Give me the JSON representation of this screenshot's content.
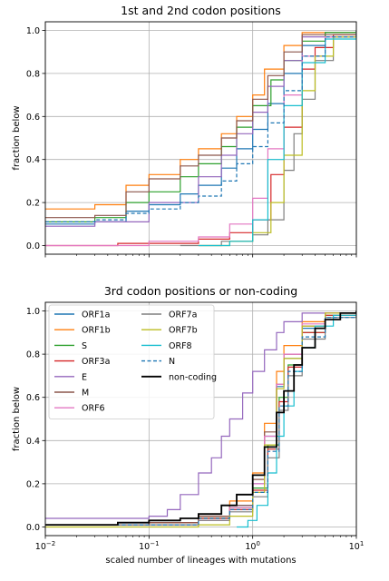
{
  "chart_data": [
    {
      "type": "line",
      "title": "1st and 2nd codon positions",
      "ylabel": "fraction below",
      "xlabel": "",
      "xscale": "log",
      "xlim": [
        0.01,
        10
      ],
      "ylim": [
        -0.04,
        1.04
      ],
      "grid": true,
      "y_ticks": [
        "0.0",
        "0.2",
        "0.4",
        "0.6",
        "0.8",
        "1.0"
      ],
      "series": [
        {
          "name": "ORF1a",
          "color": "#1f77b4",
          "style": "solid",
          "x": [
            0.01,
            0.03,
            0.06,
            0.1,
            0.2,
            0.3,
            0.5,
            0.7,
            1,
            1.4,
            2,
            3,
            5,
            10
          ],
          "y": [
            0.1,
            0.11,
            0.16,
            0.19,
            0.24,
            0.28,
            0.36,
            0.45,
            0.54,
            0.66,
            0.8,
            0.93,
            0.99,
            1.0
          ]
        },
        {
          "name": "ORF1b",
          "color": "#ff7f0e",
          "style": "solid",
          "x": [
            0.01,
            0.03,
            0.06,
            0.1,
            0.2,
            0.3,
            0.5,
            0.7,
            1,
            1.3,
            2,
            3,
            10
          ],
          "y": [
            0.17,
            0.19,
            0.28,
            0.33,
            0.4,
            0.45,
            0.52,
            0.6,
            0.7,
            0.82,
            0.93,
            0.99,
            1.0
          ]
        },
        {
          "name": "S",
          "color": "#2ca02c",
          "style": "solid",
          "x": [
            0.01,
            0.03,
            0.06,
            0.1,
            0.2,
            0.3,
            0.5,
            0.7,
            1,
            1.5,
            2,
            3,
            5,
            10
          ],
          "y": [
            0.11,
            0.13,
            0.2,
            0.25,
            0.32,
            0.38,
            0.46,
            0.55,
            0.65,
            0.77,
            0.86,
            0.95,
            0.99,
            1.0
          ]
        },
        {
          "name": "ORF3a",
          "color": "#d62728",
          "style": "solid",
          "x": [
            0.01,
            0.05,
            0.1,
            0.3,
            0.6,
            1,
            1.5,
            2,
            3,
            4,
            6,
            10
          ],
          "y": [
            0.0,
            0.01,
            0.01,
            0.03,
            0.06,
            0.12,
            0.33,
            0.55,
            0.82,
            0.92,
            0.98,
            1.0
          ]
        },
        {
          "name": "E",
          "color": "#9467bd",
          "style": "solid",
          "x": [
            0.01,
            0.03,
            0.1,
            0.3,
            0.5,
            0.7,
            1,
            1.4,
            2,
            3,
            10
          ],
          "y": [
            0.09,
            0.11,
            0.2,
            0.32,
            0.42,
            0.52,
            0.62,
            0.74,
            0.86,
            0.97,
            1.0
          ]
        },
        {
          "name": "M",
          "color": "#8c564b",
          "style": "solid",
          "x": [
            0.01,
            0.03,
            0.06,
            0.1,
            0.2,
            0.3,
            0.5,
            0.7,
            1,
            1.4,
            2,
            3,
            10
          ],
          "y": [
            0.13,
            0.14,
            0.25,
            0.31,
            0.37,
            0.42,
            0.5,
            0.58,
            0.68,
            0.79,
            0.9,
            0.98,
            1.0
          ]
        },
        {
          "name": "ORF6",
          "color": "#e377c2",
          "style": "solid",
          "x": [
            0.01,
            0.1,
            0.3,
            0.6,
            1,
            1.4,
            2,
            3,
            5,
            10
          ],
          "y": [
            0.0,
            0.02,
            0.04,
            0.1,
            0.22,
            0.45,
            0.7,
            0.88,
            0.97,
            1.0
          ]
        },
        {
          "name": "ORF7a",
          "color": "#7f7f7f",
          "style": "solid",
          "x": [
            0.2,
            0.5,
            1,
            1.4,
            2,
            2.5,
            3,
            4,
            6,
            10
          ],
          "y": [
            0.0,
            0.02,
            0.05,
            0.12,
            0.35,
            0.52,
            0.68,
            0.86,
            0.97,
            1.0
          ]
        },
        {
          "name": "ORF7b",
          "color": "#bcbd22",
          "style": "solid",
          "x": [
            0.3,
            0.6,
            1,
            1.5,
            2,
            3,
            4,
            6,
            10
          ],
          "y": [
            0.0,
            0.02,
            0.06,
            0.2,
            0.42,
            0.72,
            0.88,
            0.97,
            1.0
          ]
        },
        {
          "name": "ORF8",
          "color": "#17becf",
          "style": "solid",
          "x": [
            0.3,
            0.6,
            1,
            1.4,
            2,
            3,
            5,
            10
          ],
          "y": [
            0.0,
            0.02,
            0.12,
            0.4,
            0.65,
            0.85,
            0.96,
            1.0
          ]
        },
        {
          "name": "N",
          "color": "#1f77b4",
          "style": "dashed",
          "x": [
            0.01,
            0.03,
            0.06,
            0.1,
            0.2,
            0.3,
            0.5,
            0.7,
            1,
            1.4,
            2,
            3,
            5,
            10
          ],
          "y": [
            0.11,
            0.12,
            0.15,
            0.17,
            0.2,
            0.23,
            0.3,
            0.38,
            0.46,
            0.57,
            0.72,
            0.88,
            0.97,
            1.0
          ]
        }
      ]
    },
    {
      "type": "line",
      "title": "3rd codon positions or non-coding",
      "ylabel": "fraction below",
      "xlabel": "scaled number of lineages with mutations",
      "xscale": "log",
      "xlim": [
        0.01,
        10
      ],
      "ylim": [
        -0.04,
        1.04
      ],
      "grid": true,
      "legend": "top-left",
      "x_ticks": [
        {
          "base": "10",
          "exp": "−2"
        },
        {
          "base": "10",
          "exp": "−1"
        },
        {
          "base": "10",
          "exp": "0"
        },
        {
          "base": "10",
          "exp": "1"
        }
      ],
      "y_ticks": [
        "0.0",
        "0.2",
        "0.4",
        "0.6",
        "0.8",
        "1.0"
      ],
      "series": [
        {
          "name": "ORF1a",
          "color": "#1f77b4",
          "style": "solid",
          "x": [
            0.01,
            0.1,
            0.3,
            0.6,
            1,
            1.3,
            1.7,
            2,
            3,
            5,
            10
          ],
          "y": [
            0.01,
            0.02,
            0.05,
            0.1,
            0.2,
            0.42,
            0.65,
            0.78,
            0.92,
            0.99,
            1.0
          ]
        },
        {
          "name": "ORF1b",
          "color": "#ff7f0e",
          "style": "solid",
          "x": [
            0.01,
            0.1,
            0.3,
            0.6,
            1,
            1.3,
            1.7,
            2,
            3,
            5,
            10
          ],
          "y": [
            0.01,
            0.02,
            0.05,
            0.12,
            0.25,
            0.48,
            0.72,
            0.84,
            0.95,
            0.99,
            1.0
          ]
        },
        {
          "name": "S",
          "color": "#2ca02c",
          "style": "solid",
          "x": [
            0.01,
            0.1,
            0.3,
            0.6,
            1,
            1.4,
            1.8,
            2.2,
            3,
            5,
            10
          ],
          "y": [
            0.01,
            0.02,
            0.04,
            0.09,
            0.18,
            0.38,
            0.6,
            0.75,
            0.9,
            0.98,
            1.0
          ]
        },
        {
          "name": "ORF3a",
          "color": "#d62728",
          "style": "solid",
          "x": [
            0.01,
            0.1,
            0.3,
            0.6,
            1,
            1.4,
            1.8,
            2.2,
            3,
            5,
            10
          ],
          "y": [
            0.01,
            0.02,
            0.04,
            0.08,
            0.17,
            0.36,
            0.58,
            0.74,
            0.9,
            0.98,
            1.0
          ]
        },
        {
          "name": "E",
          "color": "#9467bd",
          "style": "solid",
          "x": [
            0.01,
            0.1,
            0.15,
            0.2,
            0.3,
            0.4,
            0.5,
            0.6,
            0.8,
            1,
            1.3,
            1.7,
            2,
            3,
            10
          ],
          "y": [
            0.04,
            0.05,
            0.08,
            0.15,
            0.25,
            0.32,
            0.42,
            0.5,
            0.62,
            0.72,
            0.82,
            0.9,
            0.95,
            0.99,
            1.0
          ]
        },
        {
          "name": "M",
          "color": "#8c564b",
          "style": "solid",
          "x": [
            0.01,
            0.1,
            0.3,
            0.6,
            1,
            1.3,
            1.7,
            2,
            3,
            5,
            10
          ],
          "y": [
            0.01,
            0.02,
            0.05,
            0.1,
            0.22,
            0.44,
            0.66,
            0.8,
            0.93,
            0.99,
            1.0
          ]
        },
        {
          "name": "ORF6",
          "color": "#e377c2",
          "style": "solid",
          "x": [
            0.01,
            0.1,
            0.3,
            0.6,
            1,
            1.3,
            1.7,
            2,
            3,
            5,
            10
          ],
          "y": [
            0.01,
            0.01,
            0.03,
            0.09,
            0.2,
            0.42,
            0.66,
            0.8,
            0.94,
            0.99,
            1.0
          ]
        },
        {
          "name": "ORF7a",
          "color": "#7f7f7f",
          "style": "solid",
          "x": [
            0.01,
            0.1,
            0.3,
            0.6,
            1,
            1.4,
            1.8,
            2.2,
            3,
            5,
            10
          ],
          "y": [
            0.01,
            0.01,
            0.03,
            0.07,
            0.14,
            0.32,
            0.54,
            0.7,
            0.87,
            0.97,
            1.0
          ]
        },
        {
          "name": "ORF7b",
          "color": "#bcbd22",
          "style": "solid",
          "x": [
            0.01,
            0.3,
            0.6,
            1,
            1.3,
            1.7,
            2,
            3,
            5,
            10
          ],
          "y": [
            0.0,
            0.01,
            0.05,
            0.16,
            0.38,
            0.64,
            0.78,
            0.93,
            0.99,
            1.0
          ]
        },
        {
          "name": "ORF8",
          "color": "#17becf",
          "style": "solid",
          "x": [
            0.7,
            0.9,
            1.1,
            1.4,
            1.7,
            2,
            2.5,
            3,
            4,
            6,
            10
          ],
          "y": [
            0.0,
            0.03,
            0.1,
            0.25,
            0.42,
            0.56,
            0.72,
            0.83,
            0.93,
            0.98,
            1.0
          ]
        },
        {
          "name": "N",
          "color": "#1f77b4",
          "style": "dashed",
          "x": [
            0.01,
            0.1,
            0.3,
            0.6,
            1,
            1.4,
            1.8,
            2.2,
            3,
            5,
            10
          ],
          "y": [
            0.01,
            0.01,
            0.04,
            0.08,
            0.16,
            0.35,
            0.56,
            0.72,
            0.88,
            0.97,
            1.0
          ]
        },
        {
          "name": "non-coding",
          "color": "#000000",
          "style": "solid",
          "width": 1.8,
          "x": [
            0.01,
            0.05,
            0.1,
            0.2,
            0.3,
            0.5,
            0.7,
            1,
            1.3,
            1.7,
            2,
            2.5,
            3,
            4,
            5,
            7,
            10
          ],
          "y": [
            0.01,
            0.02,
            0.03,
            0.04,
            0.06,
            0.1,
            0.15,
            0.24,
            0.37,
            0.53,
            0.63,
            0.75,
            0.83,
            0.92,
            0.96,
            0.99,
            1.0
          ]
        }
      ]
    }
  ]
}
